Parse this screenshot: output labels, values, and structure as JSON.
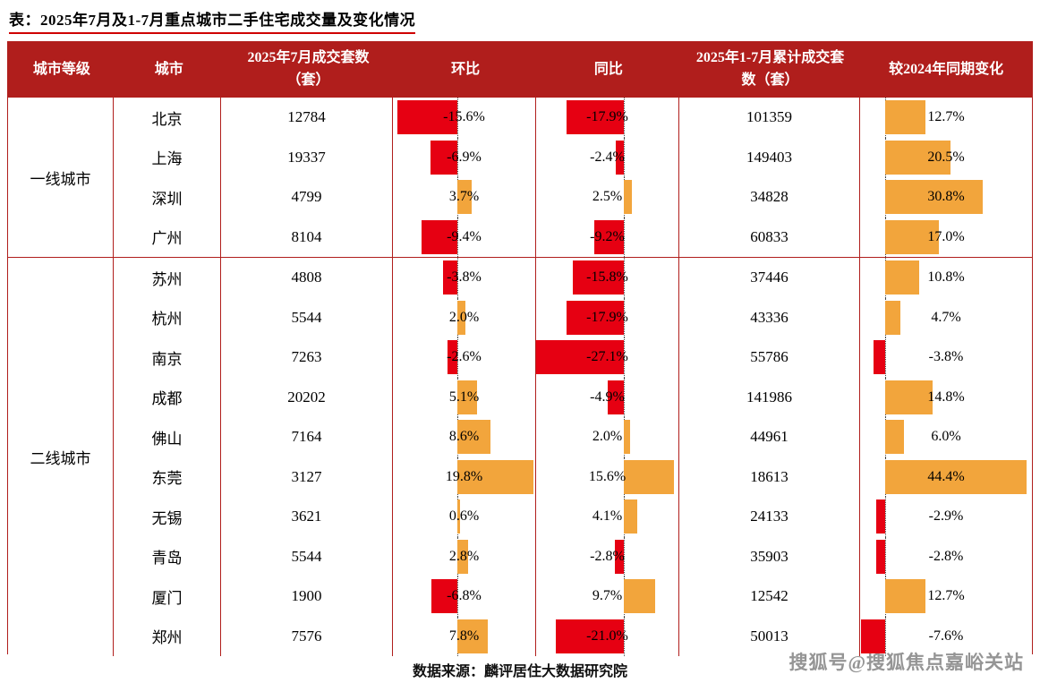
{
  "title": "表：2025年7月及1-7月重点城市二手住宅成交量及变化情况",
  "source": "数据来源：麟评居住大数据研究院",
  "watermark": "搜狐号@搜狐焦点嘉峪关站",
  "colors": {
    "header_bg": "#B01E1C",
    "border": "#B01E1C",
    "bar_negative": "#E60012",
    "bar_positive": "#F2A53C"
  },
  "columns": {
    "tier": "城市等级",
    "city": "城市",
    "july": "2025年7月成交套数（套）",
    "mom": "环比",
    "yoy": "同比",
    "cum": "2025年1-7月累计成交套数（套）",
    "vs": "较2024年同期变化"
  },
  "chart_data": {
    "type": "table",
    "bar_columns": {
      "mom": {
        "label": "环比",
        "max_abs": 19.8,
        "negative_color": "#E60012",
        "positive_color": "#F2A53C"
      },
      "yoy": {
        "label": "同比",
        "max_abs": 27.1,
        "negative_color": "#E60012",
        "positive_color": "#F2A53C"
      },
      "vs": {
        "label": "较2024年同期变化",
        "max_abs": 44.4,
        "negative_color": "#E60012",
        "positive_color": "#F2A53C"
      }
    },
    "groups": [
      {
        "tier": "一线城市",
        "rows": [
          {
            "city": "北京",
            "july": "12784",
            "mom": -15.6,
            "mom_label": "-15.6%",
            "yoy": -17.9,
            "yoy_label": "-17.9%",
            "cum": "101359",
            "vs": 12.7,
            "vs_label": "12.7%"
          },
          {
            "city": "上海",
            "july": "19337",
            "mom": -6.9,
            "mom_label": "-6.9%",
            "yoy": -2.4,
            "yoy_label": "-2.4%",
            "cum": "149403",
            "vs": 20.5,
            "vs_label": "20.5%"
          },
          {
            "city": "深圳",
            "july": "4799",
            "mom": 3.7,
            "mom_label": "3.7%",
            "yoy": 2.5,
            "yoy_label": "2.5%",
            "cum": "34828",
            "vs": 30.8,
            "vs_label": "30.8%"
          },
          {
            "city": "广州",
            "july": "8104",
            "mom": -9.4,
            "mom_label": "-9.4%",
            "yoy": -9.2,
            "yoy_label": "-9.2%",
            "cum": "60833",
            "vs": 17.0,
            "vs_label": "17.0%"
          }
        ]
      },
      {
        "tier": "二线城市",
        "rows": [
          {
            "city": "苏州",
            "july": "4808",
            "mom": -3.8,
            "mom_label": "-3.8%",
            "yoy": -15.8,
            "yoy_label": "-15.8%",
            "cum": "37446",
            "vs": 10.8,
            "vs_label": "10.8%"
          },
          {
            "city": "杭州",
            "july": "5544",
            "mom": 2.0,
            "mom_label": "2.0%",
            "yoy": -17.9,
            "yoy_label": "-17.9%",
            "cum": "43336",
            "vs": 4.7,
            "vs_label": "4.7%"
          },
          {
            "city": "南京",
            "july": "7263",
            "mom": -2.6,
            "mom_label": "-2.6%",
            "yoy": -27.1,
            "yoy_label": "-27.1%",
            "cum": "55786",
            "vs": -3.8,
            "vs_label": "-3.8%"
          },
          {
            "city": "成都",
            "july": "20202",
            "mom": 5.1,
            "mom_label": "5.1%",
            "yoy": -4.9,
            "yoy_label": "-4.9%",
            "cum": "141986",
            "vs": 14.8,
            "vs_label": "14.8%"
          },
          {
            "city": "佛山",
            "july": "7164",
            "mom": 8.6,
            "mom_label": "8.6%",
            "yoy": 2.0,
            "yoy_label": "2.0%",
            "cum": "44961",
            "vs": 6.0,
            "vs_label": "6.0%"
          },
          {
            "city": "东莞",
            "july": "3127",
            "mom": 19.8,
            "mom_label": "19.8%",
            "yoy": 15.6,
            "yoy_label": "15.6%",
            "cum": "18613",
            "vs": 44.4,
            "vs_label": "44.4%"
          },
          {
            "city": "无锡",
            "july": "3621",
            "mom": 0.6,
            "mom_label": "0.6%",
            "yoy": 4.1,
            "yoy_label": "4.1%",
            "cum": "24133",
            "vs": -2.9,
            "vs_label": "-2.9%"
          },
          {
            "city": "青岛",
            "july": "5544",
            "mom": 2.8,
            "mom_label": "2.8%",
            "yoy": -2.8,
            "yoy_label": "-2.8%",
            "cum": "35903",
            "vs": -2.8,
            "vs_label": "-2.8%"
          },
          {
            "city": "厦门",
            "july": "1900",
            "mom": -6.8,
            "mom_label": "-6.8%",
            "yoy": 9.7,
            "yoy_label": "9.7%",
            "cum": "12542",
            "vs": 12.7,
            "vs_label": "12.7%"
          },
          {
            "city": "郑州",
            "july": "7576",
            "mom": 7.8,
            "mom_label": "7.8%",
            "yoy": -21.0,
            "yoy_label": "-21.0%",
            "cum": "50013",
            "vs": -7.6,
            "vs_label": "-7.6%"
          }
        ]
      }
    ]
  }
}
